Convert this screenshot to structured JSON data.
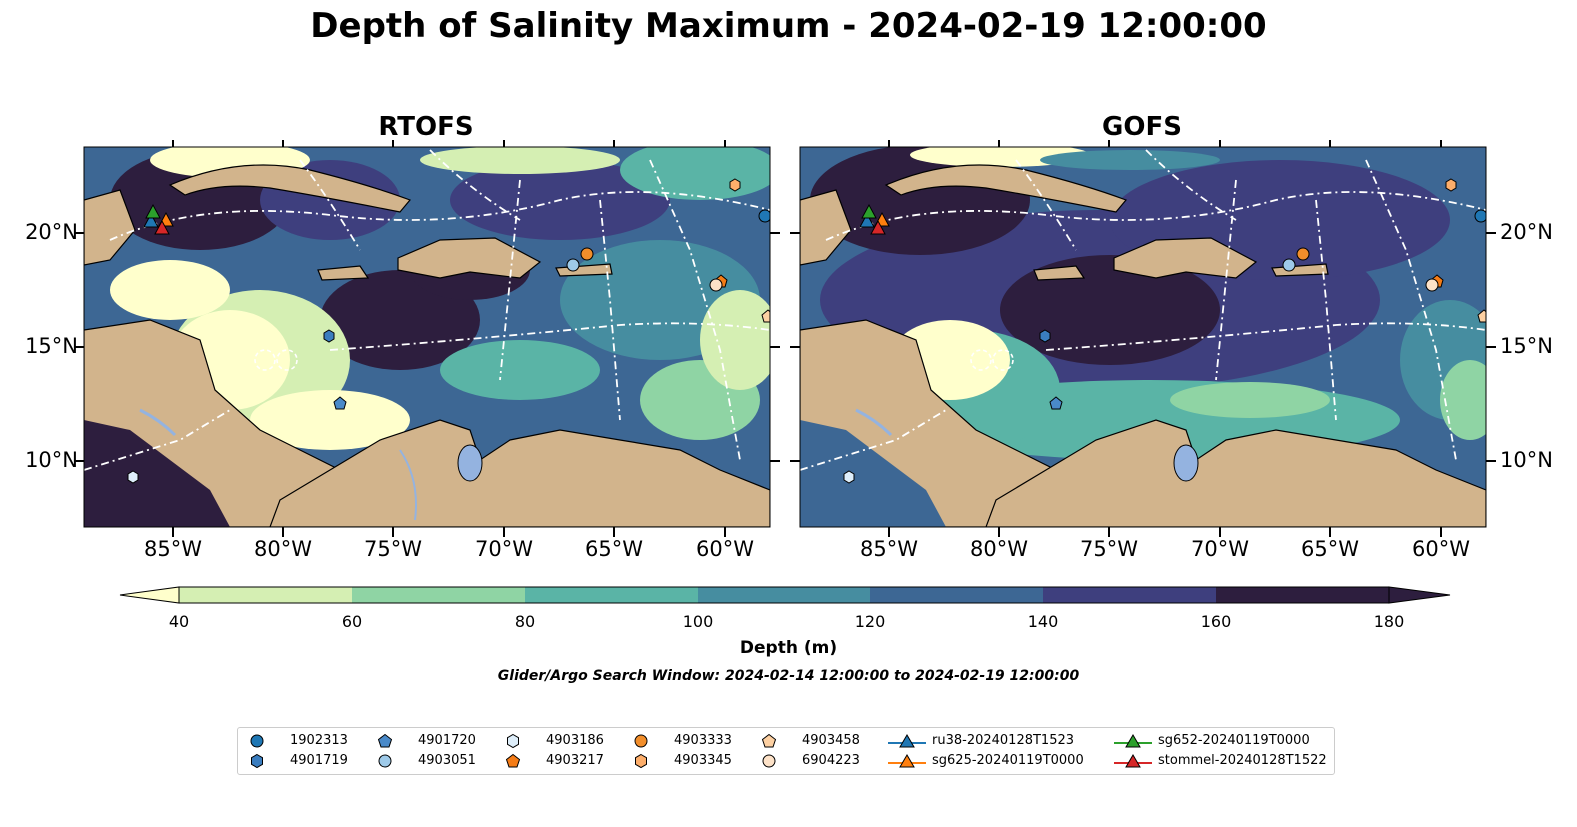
{
  "title": "Depth of Salinity Maximum - 2024-02-19 12:00:00",
  "panels": [
    {
      "title": "RTOFS"
    },
    {
      "title": "GOFS"
    }
  ],
  "lon_ticks": [
    "85°W",
    "80°W",
    "75°W",
    "70°W",
    "65°W",
    "60°W"
  ],
  "lat_ticks": [
    "20°N",
    "15°N",
    "10°N"
  ],
  "colorbar": {
    "label": "Depth (m)",
    "ticks": [
      "40",
      "60",
      "80",
      "100",
      "120",
      "140",
      "160",
      "180"
    ],
    "colors": [
      "#ffffcc",
      "#d5efb3",
      "#8fd4a4",
      "#5ab4a6",
      "#468da0",
      "#3d6794",
      "#3e3f7e",
      "#2d1e3e"
    ]
  },
  "search_window": "Glider/Argo Search Window: 2024-02-14 12:00:00 to 2024-02-19 12:00:00",
  "colors": {
    "land": "#d2b48c",
    "lake": "#94b3e0",
    "river": "#94b3e0",
    "track": "#ffffff"
  },
  "legend": [
    {
      "label": "1902313",
      "marker": "circle",
      "color": "#1f77b4"
    },
    {
      "label": "4901719",
      "marker": "hexagon",
      "color": "#3a7dbf"
    },
    {
      "label": "4901720",
      "marker": "pentagon",
      "color": "#4a8ac9"
    },
    {
      "label": "4903051",
      "marker": "circle",
      "color": "#9ecae9"
    },
    {
      "label": "4903186",
      "marker": "hexagon",
      "color": "#deeefa"
    },
    {
      "label": "4903217",
      "marker": "pentagon",
      "color": "#f57c16"
    },
    {
      "label": "4903333",
      "marker": "circle",
      "color": "#f28e2b"
    },
    {
      "label": "4903345",
      "marker": "hexagon",
      "color": "#fdae6b"
    },
    {
      "label": "4903458",
      "marker": "pentagon",
      "color": "#fdd0a2"
    },
    {
      "label": "6904223",
      "marker": "circle",
      "color": "#fde2c8"
    },
    {
      "label": "ru38-20240128T1523",
      "marker": "triangle",
      "color": "#1f77b4"
    },
    {
      "label": "sg625-20240119T0000",
      "marker": "triangle",
      "color": "#ff7f0e"
    },
    {
      "label": "sg652-20240119T0000",
      "marker": "triangle",
      "color": "#2ca02c"
    },
    {
      "label": "stommel-20240128T1522",
      "marker": "triangle",
      "color": "#d62728"
    }
  ]
}
